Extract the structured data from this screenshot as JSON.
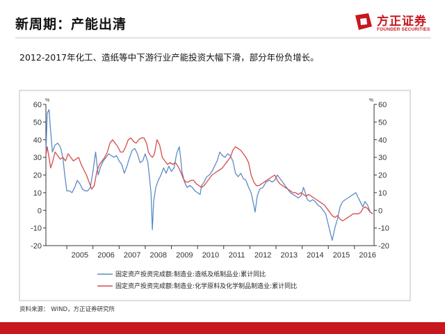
{
  "header": {
    "title": "新周期：产能出清",
    "logo_cn": "方正证券",
    "logo_en": "FOUNDER SECURITIES"
  },
  "subtitle": "2012-2017年化工、造纸等中下游行业产能投资大幅下滑，部分年份负增长。",
  "source": "资料来源： WIND，方正证券研究所",
  "colors": {
    "brand": "#c8171e",
    "series_blue": "#5b8bc4",
    "series_red": "#d84a4a",
    "axis": "#333333"
  },
  "chart_data": {
    "type": "line",
    "unit_left": "%",
    "unit_right": "%",
    "ylim": [
      -20,
      60
    ],
    "yticks": [
      -20,
      -10,
      0,
      10,
      20,
      30,
      40,
      50,
      60
    ],
    "xlim": [
      2004.2,
      2016.75
    ],
    "xticks": [
      "2005",
      "2006",
      "2007",
      "2008",
      "2009",
      "2010",
      "2011",
      "2012",
      "2013",
      "2014",
      "2015",
      "2016"
    ],
    "legend_position": "bottom",
    "series": [
      {
        "name": "固定资产投资完成额:制造业:造纸及纸制品业:累计同比",
        "color": "#5b8bc4",
        "points": [
          [
            2004.2,
            32
          ],
          [
            2004.25,
            55
          ],
          [
            2004.32,
            57
          ],
          [
            2004.38,
            45
          ],
          [
            2004.45,
            33
          ],
          [
            2004.55,
            37
          ],
          [
            2004.65,
            38
          ],
          [
            2004.75,
            36
          ],
          [
            2004.85,
            30
          ],
          [
            2004.92,
            20
          ],
          [
            2005.0,
            11
          ],
          [
            2005.1,
            11
          ],
          [
            2005.2,
            10
          ],
          [
            2005.3,
            13
          ],
          [
            2005.4,
            17
          ],
          [
            2005.5,
            15
          ],
          [
            2005.6,
            12
          ],
          [
            2005.7,
            11
          ],
          [
            2005.8,
            11
          ],
          [
            2005.9,
            13
          ],
          [
            2006.0,
            22
          ],
          [
            2006.1,
            33
          ],
          [
            2006.2,
            20
          ],
          [
            2006.3,
            25
          ],
          [
            2006.4,
            28
          ],
          [
            2006.5,
            30
          ],
          [
            2006.6,
            32
          ],
          [
            2006.7,
            31
          ],
          [
            2006.8,
            30
          ],
          [
            2006.9,
            31
          ],
          [
            2007.0,
            28
          ],
          [
            2007.1,
            26
          ],
          [
            2007.2,
            21
          ],
          [
            2007.3,
            25
          ],
          [
            2007.4,
            30
          ],
          [
            2007.5,
            34
          ],
          [
            2007.6,
            35
          ],
          [
            2007.7,
            32
          ],
          [
            2007.8,
            27
          ],
          [
            2007.9,
            28
          ],
          [
            2008.0,
            32
          ],
          [
            2008.1,
            27
          ],
          [
            2008.15,
            20
          ],
          [
            2008.22,
            10
          ],
          [
            2008.27,
            -11
          ],
          [
            2008.32,
            5
          ],
          [
            2008.4,
            13
          ],
          [
            2008.5,
            17
          ],
          [
            2008.6,
            20
          ],
          [
            2008.7,
            24
          ],
          [
            2008.8,
            21
          ],
          [
            2008.9,
            25
          ],
          [
            2009.0,
            22
          ],
          [
            2009.1,
            24
          ],
          [
            2009.2,
            32
          ],
          [
            2009.3,
            36
          ],
          [
            2009.35,
            30
          ],
          [
            2009.4,
            22
          ],
          [
            2009.5,
            16
          ],
          [
            2009.6,
            13
          ],
          [
            2009.7,
            14
          ],
          [
            2009.8,
            13
          ],
          [
            2009.9,
            11
          ],
          [
            2010.0,
            10
          ],
          [
            2010.1,
            9
          ],
          [
            2010.15,
            14
          ],
          [
            2010.25,
            16
          ],
          [
            2010.35,
            19
          ],
          [
            2010.45,
            20
          ],
          [
            2010.55,
            22
          ],
          [
            2010.65,
            25
          ],
          [
            2010.75,
            28
          ],
          [
            2010.85,
            33
          ],
          [
            2010.95,
            31
          ],
          [
            2011.05,
            30
          ],
          [
            2011.15,
            32
          ],
          [
            2011.25,
            31
          ],
          [
            2011.35,
            28
          ],
          [
            2011.45,
            21
          ],
          [
            2011.55,
            19
          ],
          [
            2011.65,
            21
          ],
          [
            2011.75,
            18
          ],
          [
            2011.85,
            17
          ],
          [
            2011.95,
            13
          ],
          [
            2012.05,
            10
          ],
          [
            2012.12,
            5
          ],
          [
            2012.2,
            -1
          ],
          [
            2012.28,
            8
          ],
          [
            2012.38,
            12
          ],
          [
            2012.5,
            13
          ],
          [
            2012.62,
            16
          ],
          [
            2012.75,
            17
          ],
          [
            2012.85,
            16
          ],
          [
            2012.95,
            17
          ],
          [
            2013.05,
            20
          ],
          [
            2013.15,
            18
          ],
          [
            2013.25,
            16
          ],
          [
            2013.35,
            14
          ],
          [
            2013.45,
            12
          ],
          [
            2013.55,
            10
          ],
          [
            2013.65,
            9
          ],
          [
            2013.75,
            8
          ],
          [
            2013.85,
            7
          ],
          [
            2013.95,
            8
          ],
          [
            2014.05,
            13
          ],
          [
            2014.12,
            10
          ],
          [
            2014.2,
            6
          ],
          [
            2014.3,
            5
          ],
          [
            2014.4,
            6
          ],
          [
            2014.5,
            5
          ],
          [
            2014.6,
            3
          ],
          [
            2014.7,
            2
          ],
          [
            2014.8,
            0
          ],
          [
            2014.9,
            -2
          ],
          [
            2015.0,
            -8
          ],
          [
            2015.08,
            -13
          ],
          [
            2015.15,
            -17
          ],
          [
            2015.25,
            -10
          ],
          [
            2015.35,
            -5
          ],
          [
            2015.45,
            2
          ],
          [
            2015.55,
            5
          ],
          [
            2015.65,
            6
          ],
          [
            2015.75,
            7
          ],
          [
            2015.85,
            8
          ],
          [
            2015.95,
            9
          ],
          [
            2016.05,
            10
          ],
          [
            2016.15,
            7
          ],
          [
            2016.25,
            4
          ],
          [
            2016.32,
            2
          ],
          [
            2016.4,
            5
          ],
          [
            2016.5,
            3
          ],
          [
            2016.6,
            -1
          ],
          [
            2016.7,
            -2
          ]
        ]
      },
      {
        "name": "固定资产投资完成额:制造业:化学原料及化学制品制造业:累计同比",
        "color": "#d84a4a",
        "points": [
          [
            2004.2,
            31
          ],
          [
            2004.25,
            36
          ],
          [
            2004.32,
            30
          ],
          [
            2004.38,
            24
          ],
          [
            2004.45,
            27
          ],
          [
            2004.55,
            33
          ],
          [
            2004.65,
            31
          ],
          [
            2004.75,
            29
          ],
          [
            2004.85,
            30
          ],
          [
            2004.95,
            28
          ],
          [
            2005.05,
            32
          ],
          [
            2005.15,
            30
          ],
          [
            2005.25,
            28
          ],
          [
            2005.35,
            29
          ],
          [
            2005.45,
            30
          ],
          [
            2005.55,
            26
          ],
          [
            2005.65,
            23
          ],
          [
            2005.75,
            20
          ],
          [
            2005.85,
            16
          ],
          [
            2005.95,
            12
          ],
          [
            2006.05,
            14
          ],
          [
            2006.15,
            22
          ],
          [
            2006.25,
            26
          ],
          [
            2006.35,
            28
          ],
          [
            2006.45,
            30
          ],
          [
            2006.55,
            33
          ],
          [
            2006.65,
            38
          ],
          [
            2006.75,
            40
          ],
          [
            2006.85,
            38
          ],
          [
            2006.95,
            36
          ],
          [
            2007.05,
            33
          ],
          [
            2007.15,
            33
          ],
          [
            2007.25,
            36
          ],
          [
            2007.35,
            40
          ],
          [
            2007.45,
            41
          ],
          [
            2007.55,
            39
          ],
          [
            2007.65,
            38
          ],
          [
            2007.75,
            40
          ],
          [
            2007.85,
            41
          ],
          [
            2007.95,
            41
          ],
          [
            2008.05,
            38
          ],
          [
            2008.12,
            33
          ],
          [
            2008.2,
            31
          ],
          [
            2008.28,
            30
          ],
          [
            2008.35,
            32
          ],
          [
            2008.45,
            40
          ],
          [
            2008.55,
            37
          ],
          [
            2008.65,
            30
          ],
          [
            2008.75,
            28
          ],
          [
            2008.85,
            26
          ],
          [
            2008.95,
            27
          ],
          [
            2009.05,
            26
          ],
          [
            2009.15,
            27
          ],
          [
            2009.25,
            25
          ],
          [
            2009.35,
            22
          ],
          [
            2009.45,
            18
          ],
          [
            2009.55,
            16
          ],
          [
            2009.65,
            16
          ],
          [
            2009.75,
            17
          ],
          [
            2009.85,
            17
          ],
          [
            2009.95,
            15
          ],
          [
            2010.05,
            14
          ],
          [
            2010.15,
            13
          ],
          [
            2010.25,
            14
          ],
          [
            2010.35,
            16
          ],
          [
            2010.45,
            18
          ],
          [
            2010.55,
            20
          ],
          [
            2010.65,
            21
          ],
          [
            2010.75,
            22
          ],
          [
            2010.85,
            23
          ],
          [
            2010.95,
            24
          ],
          [
            2011.05,
            26
          ],
          [
            2011.15,
            28
          ],
          [
            2011.25,
            30
          ],
          [
            2011.35,
            34
          ],
          [
            2011.45,
            36
          ],
          [
            2011.55,
            35
          ],
          [
            2011.65,
            34
          ],
          [
            2011.75,
            32
          ],
          [
            2011.85,
            30
          ],
          [
            2011.95,
            27
          ],
          [
            2012.05,
            20
          ],
          [
            2012.15,
            16
          ],
          [
            2012.25,
            14
          ],
          [
            2012.35,
            14
          ],
          [
            2012.45,
            15
          ],
          [
            2012.55,
            16
          ],
          [
            2012.65,
            17
          ],
          [
            2012.75,
            18
          ],
          [
            2012.85,
            19
          ],
          [
            2012.95,
            20
          ],
          [
            2013.05,
            17
          ],
          [
            2013.15,
            15
          ],
          [
            2013.25,
            14
          ],
          [
            2013.35,
            13
          ],
          [
            2013.45,
            12
          ],
          [
            2013.55,
            11
          ],
          [
            2013.65,
            10
          ],
          [
            2013.75,
            10
          ],
          [
            2013.85,
            9
          ],
          [
            2013.95,
            10
          ],
          [
            2014.05,
            9
          ],
          [
            2014.15,
            8
          ],
          [
            2014.25,
            9
          ],
          [
            2014.35,
            8
          ],
          [
            2014.45,
            7
          ],
          [
            2014.55,
            6
          ],
          [
            2014.65,
            5
          ],
          [
            2014.75,
            4
          ],
          [
            2014.85,
            3
          ],
          [
            2014.95,
            1
          ],
          [
            2015.05,
            -1
          ],
          [
            2015.15,
            -3
          ],
          [
            2015.25,
            -4
          ],
          [
            2015.35,
            -3
          ],
          [
            2015.45,
            -5
          ],
          [
            2015.55,
            -6
          ],
          [
            2015.65,
            -5
          ],
          [
            2015.75,
            -4
          ],
          [
            2015.85,
            -3
          ],
          [
            2015.95,
            -2
          ],
          [
            2016.05,
            -2
          ],
          [
            2016.15,
            -2
          ],
          [
            2016.25,
            -1
          ],
          [
            2016.32,
            1
          ],
          [
            2016.4,
            2
          ],
          [
            2016.5,
            1
          ],
          [
            2016.6,
            -1
          ],
          [
            2016.7,
            -2
          ]
        ]
      }
    ]
  }
}
